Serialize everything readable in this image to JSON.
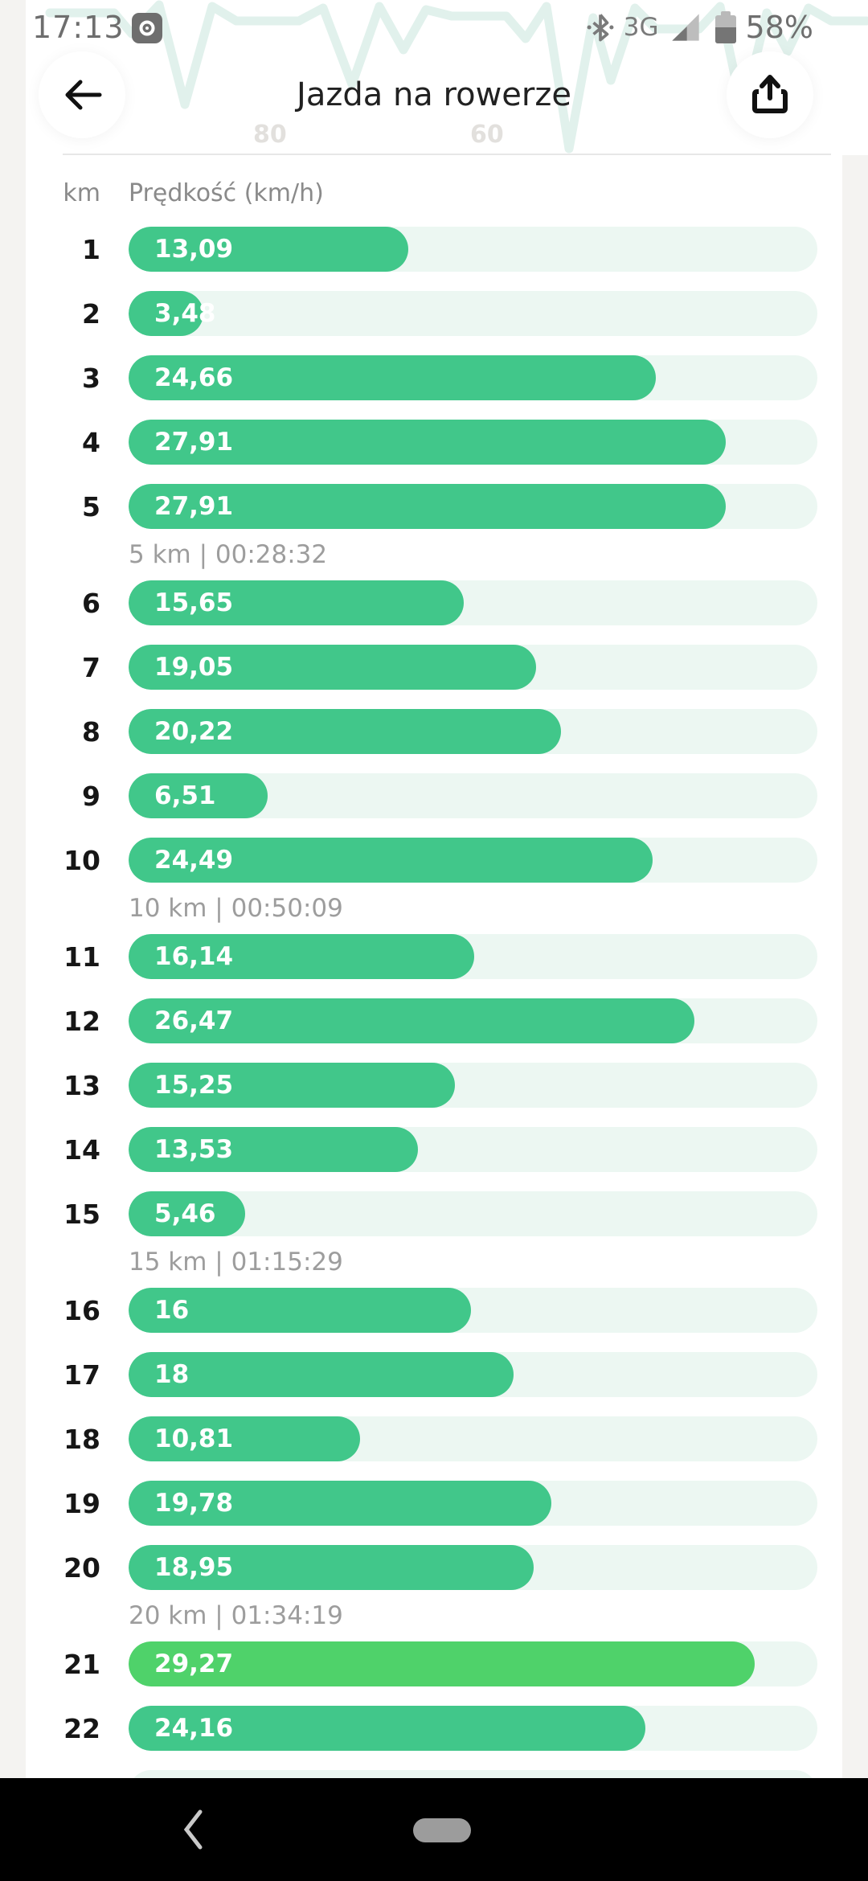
{
  "status_bar": {
    "time": "17:13",
    "camera_icon": "camera-icon",
    "bluetooth_icon": "bluetooth-icon",
    "network_label": "3G",
    "signal_icon": "cell-signal-icon",
    "battery_icon": "battery-icon",
    "battery_percent": "58%"
  },
  "header": {
    "title": "Jazda na rowerze",
    "back_icon": "arrow-left-icon",
    "share_icon": "share-icon",
    "watermark_ticks": [
      "80",
      "60"
    ]
  },
  "table_headers": {
    "km": "km",
    "speed": "Prędkość (km/h)"
  },
  "chart_data": {
    "type": "bar",
    "orientation": "horizontal",
    "title": "Jazda na rowerze",
    "xlabel": "Prędkość (km/h)",
    "ylabel": "km",
    "x_axis_range": [
      0,
      32.2
    ],
    "grid": false,
    "legend": "none",
    "categories": [
      1,
      2,
      3,
      4,
      5,
      6,
      7,
      8,
      9,
      10,
      11,
      12,
      13,
      14,
      15,
      16,
      17,
      18,
      19,
      20,
      21,
      22
    ],
    "values": [
      13.09,
      3.48,
      24.66,
      27.91,
      27.91,
      15.65,
      19.05,
      20.22,
      6.51,
      24.49,
      16.14,
      26.47,
      15.25,
      13.53,
      5.46,
      16,
      18,
      10.81,
      19.78,
      18.95,
      29.27,
      24.16
    ],
    "value_labels": [
      "13,09",
      "3,48",
      "24,66",
      "27,91",
      "27,91",
      "15,65",
      "19,05",
      "20,22",
      "6,51",
      "24,49",
      "16,14",
      "26,47",
      "15,25",
      "13,53",
      "5,46",
      "16",
      "18",
      "10,81",
      "19,78",
      "18,95",
      "29,27",
      "24,16"
    ],
    "highlight_index": 20,
    "milestones": [
      {
        "after_index": 4,
        "label": "5 km | 00:28:32"
      },
      {
        "after_index": 9,
        "label": "10 km | 00:50:09"
      },
      {
        "after_index": 14,
        "label": "15 km | 01:15:29"
      },
      {
        "after_index": 19,
        "label": "20 km | 01:34:19"
      }
    ],
    "partial_next_row_visible": true
  },
  "colors": {
    "bar_fill": "#41c78a",
    "bar_highlight": "#4fd26a",
    "bar_track": "#ecf7f2",
    "accent_text_on_bar": "#ffffff",
    "milestone_text": "#9d9d9d",
    "nav_bar_bg": "#000000"
  },
  "nav_bar": {
    "back_icon": "chevron-left-icon",
    "home_icon": "home-pill"
  }
}
